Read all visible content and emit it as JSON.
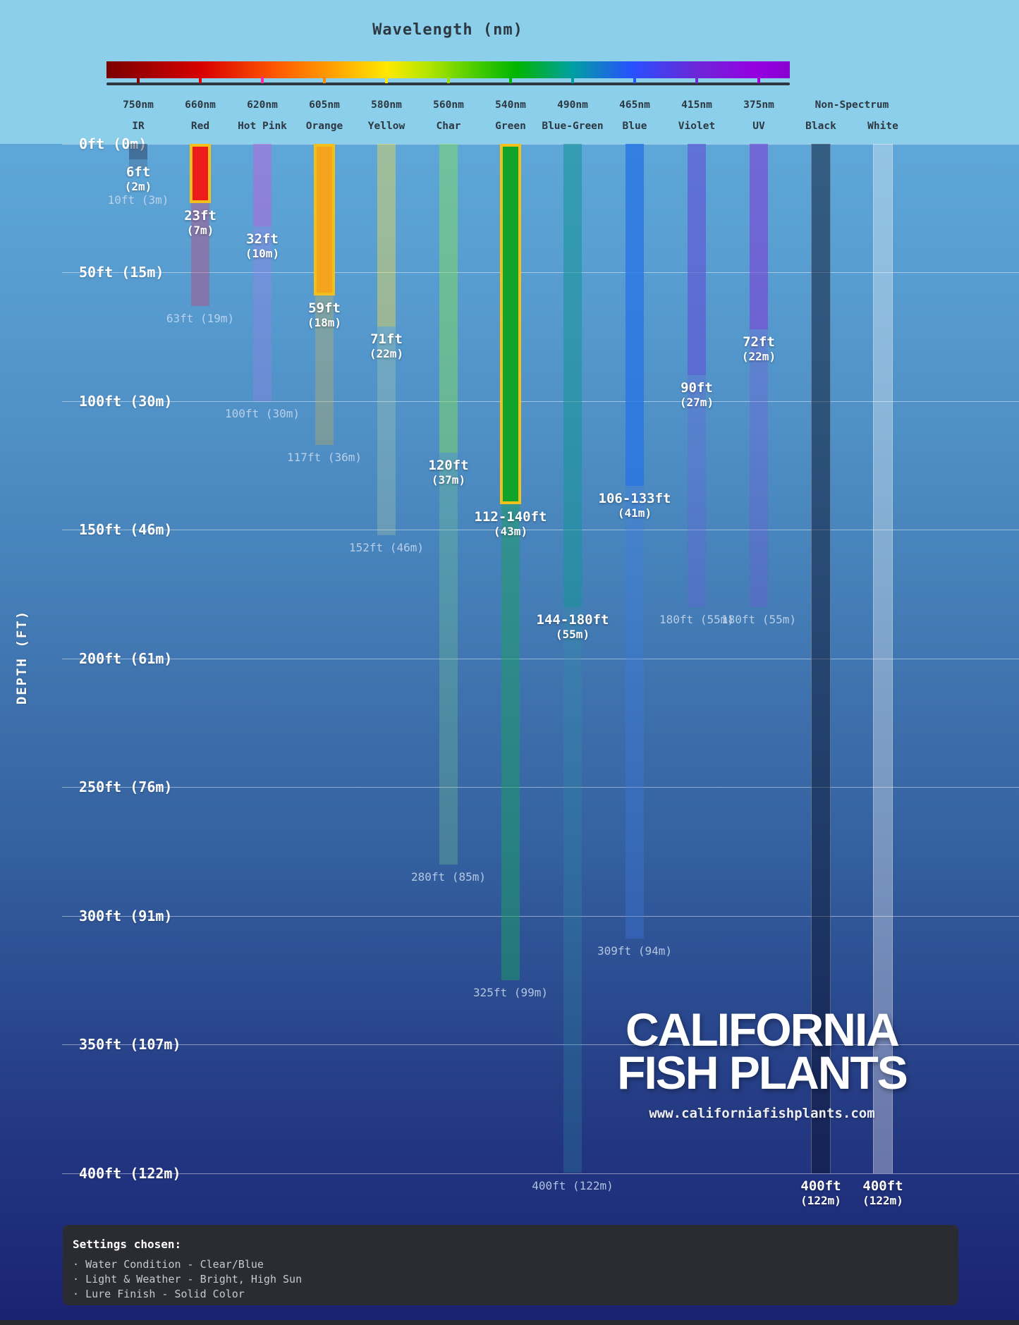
{
  "header": {
    "title": "Wavelength (nm)",
    "non_spectrum_label": "Non-Spectrum"
  },
  "axis": {
    "depth_axis_label": "DEPTH (FT)",
    "gridlines": [
      {
        "ft": 0,
        "label": "0ft (0m)"
      },
      {
        "ft": 50,
        "label": "50ft (15m)"
      },
      {
        "ft": 100,
        "label": "100ft (30m)"
      },
      {
        "ft": 150,
        "label": "150ft (46m)"
      },
      {
        "ft": 200,
        "label": "200ft (61m)"
      },
      {
        "ft": 250,
        "label": "250ft (76m)"
      },
      {
        "ft": 300,
        "label": "300ft (91m)"
      },
      {
        "ft": 350,
        "label": "350ft (107m)"
      },
      {
        "ft": 400,
        "label": "400ft (122m)"
      }
    ]
  },
  "watermark": {
    "line1": "CALIFORNIA",
    "line2": "FISH PLANTS",
    "url": "www.californiafishplants.com"
  },
  "settings": {
    "title": "Settings chosen:",
    "items": [
      "Water Condition - Clear/Blue",
      "Light & Weather - Bright, High Sun",
      "Lure Finish - Solid Color"
    ]
  },
  "chart_data": {
    "type": "bar",
    "title": "Wavelength (nm)",
    "ylabel": "DEPTH (FT)",
    "y_axis": {
      "unit": "ft",
      "min": 0,
      "max": 400,
      "gridline_step_ft": 50
    },
    "description": "Lure color visibility depth by light wavelength; solid bar = visible depth, faded bar = maximum trace depth; gold outline = recommended colors",
    "spectrum_gradient": [
      "#7a0000 0%",
      "#d80000 14%",
      "#ff5a00 25%",
      "#ffa000 33%",
      "#ffe800 41%",
      "#b4e600 47%",
      "#3cc800 55%",
      "#00b400 60%",
      "#00a0a0 68%",
      "#2850ff 77%",
      "#6a28d8 86%",
      "#9600e0 95%",
      "#8800d0 100%"
    ],
    "columns": [
      {
        "id": "ir",
        "wavelength": "750nm",
        "name": "IR",
        "tick": "#8b0000",
        "bar": {
          "color": "rgba(28,38,68,0.42)",
          "depth_ft": 6,
          "label": [
            "6ft",
            "(2m)"
          ]
        },
        "faded": {
          "color": "rgba(40,52,86,0.22)",
          "depth_ft": 10,
          "label": "10ft (3m)",
          "label_dy": 34
        }
      },
      {
        "id": "red",
        "wavelength": "660nm",
        "name": "Red",
        "tick": "#e00000",
        "highlight": true,
        "bar": {
          "color": "#ee1b1b",
          "depth_ft": 23,
          "label": [
            "23ft",
            "(7m)"
          ]
        },
        "faded": {
          "color": "rgba(198,62,118,0.40)",
          "depth_ft": 63,
          "label": "63ft (19m)"
        }
      },
      {
        "id": "hot-pink",
        "wavelength": "620nm",
        "name": "Hot Pink",
        "tick": "#ff2d9c",
        "bar": {
          "color": "rgba(188,98,220,0.52)",
          "depth_ft": 32,
          "label": [
            "32ft",
            "(10m)"
          ]
        },
        "faded": {
          "color": "rgba(168,124,238,0.30)",
          "depth_ft": 100,
          "label": "100ft (30m)"
        }
      },
      {
        "id": "orange",
        "wavelength": "605nm",
        "name": "Orange",
        "tick": "#ff8c00",
        "highlight": true,
        "bar": {
          "color": "#f5a51d",
          "depth_ft": 59,
          "label": [
            "59ft",
            "(18m)"
          ]
        },
        "faded": {
          "color": "rgba(196,178,92,0.36)",
          "depth_ft": 117,
          "label": "117ft (36m)"
        }
      },
      {
        "id": "yellow",
        "wavelength": "580nm",
        "name": "Yellow",
        "tick": "#ffe400",
        "bar": {
          "color": "rgba(248,224,72,0.42)",
          "depth_ft": 71,
          "label": [
            "71ft",
            "(22m)"
          ]
        },
        "faded": {
          "color": "rgba(198,222,168,0.26)",
          "depth_ft": 152,
          "label": "152ft (46m)"
        }
      },
      {
        "id": "char",
        "wavelength": "560nm",
        "name": "Char",
        "tick": "#9ce000",
        "bar": {
          "color": "rgba(132,224,92,0.48)",
          "depth_ft": 120,
          "label": [
            "120ft",
            "(37m)"
          ]
        },
        "faded": {
          "color": "rgba(118,204,142,0.30)",
          "depth_ft": 280,
          "label": "280ft (85m)"
        }
      },
      {
        "id": "green",
        "wavelength": "540nm",
        "name": "Green",
        "tick": "#00b400",
        "highlight": true,
        "bar": {
          "color": "#12a32a",
          "depth_ft": 140,
          "label": [
            "112-140ft",
            "(43m)"
          ]
        },
        "faded": {
          "color": "rgba(28,158,102,0.52)",
          "depth_ft": 325,
          "label": "325ft (99m)"
        }
      },
      {
        "id": "blue-green",
        "wavelength": "490nm",
        "name": "Blue-Green",
        "tick": "#00a0a0",
        "bar": {
          "color": "rgba(24,148,152,0.58)",
          "depth_ft": 180,
          "label": [
            "144-180ft",
            "(55m)"
          ]
        },
        "faded": {
          "color": "rgba(48,150,168,0.26)",
          "depth_ft": 400,
          "label": "400ft (122m)"
        }
      },
      {
        "id": "blue",
        "wavelength": "465nm",
        "name": "Blue",
        "tick": "#2458ff",
        "bar": {
          "color": "rgba(40,116,228,0.78)",
          "depth_ft": 133,
          "label": [
            "106-133ft",
            "(41m)"
          ]
        },
        "faded": {
          "color": "rgba(62,124,228,0.34)",
          "depth_ft": 309,
          "label": "309ft (94m)"
        }
      },
      {
        "id": "violet",
        "wavelength": "415nm",
        "name": "Violet",
        "tick": "#6a30d0",
        "bar": {
          "color": "rgba(96,88,212,0.68)",
          "depth_ft": 90,
          "label": [
            "90ft",
            "(27m)"
          ]
        },
        "faded": {
          "color": "rgba(106,96,218,0.32)",
          "depth_ft": 180,
          "label": "180ft (55m)"
        }
      },
      {
        "id": "uv",
        "wavelength": "375nm",
        "name": "UV",
        "tick": "#a000e0",
        "bar": {
          "color": "rgba(122,66,212,0.62)",
          "depth_ft": 72,
          "label": [
            "72ft",
            "(22m)"
          ]
        },
        "faded": {
          "color": "rgba(124,78,218,0.28)",
          "depth_ft": 180,
          "label": "180ft (55m)"
        }
      },
      {
        "id": "black",
        "name": "Black",
        "group": "Non-Spectrum",
        "outlined": true,
        "bar": {
          "color": "rgba(10,20,46,0.50)",
          "depth_ft": 400,
          "label": [
            "400ft",
            "(122m)"
          ]
        }
      },
      {
        "id": "white",
        "name": "White",
        "group": "Non-Spectrum",
        "outlined": true,
        "bar": {
          "color": "rgba(255,255,255,0.33)",
          "depth_ft": 400,
          "label": [
            "400ft",
            "(122m)"
          ]
        }
      }
    ]
  }
}
